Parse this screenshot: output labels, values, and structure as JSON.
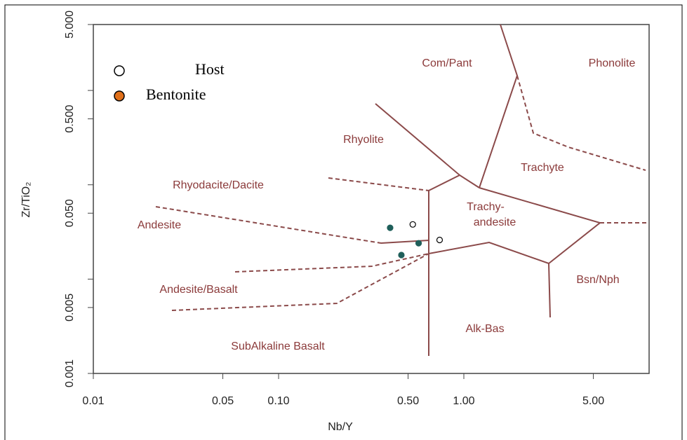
{
  "chart_data": {
    "type": "scatter",
    "x_label": "Nb/Y",
    "y_label": "Zr/TiO₂",
    "log_x": true,
    "log_y": true,
    "xlim": [
      0.01,
      10
    ],
    "ylim": [
      0.001,
      5
    ],
    "xticks": [
      0.01,
      0.05,
      {
        "value": 0.1,
        "label": "0.10"
      },
      {
        "value": 0.5,
        "label": "0.50"
      },
      {
        "value": 1,
        "label": "1.00"
      },
      {
        "value": 5,
        "label": "5.00"
      }
    ],
    "yticks": [
      {
        "value": 0.001,
        "label": "0.001"
      },
      {
        "value": 0.005,
        "label": "0.005"
      },
      {
        "value": 0.05,
        "label": "0.050"
      },
      {
        "value": 0.5,
        "label": "0.500"
      },
      {
        "value": 5,
        "label": "5.000"
      }
    ],
    "yminor_ticks": [
      0.01,
      0.1,
      1
    ],
    "annotations": [
      "Com/Pant",
      "Phonolite",
      "Rhyolite",
      "Trachyte",
      "Rhyodacite/Dacite",
      "Trachy-",
      "andesite",
      "Andesite",
      "Bsn/Nph",
      "Andesite/Basalt",
      "Alk-Bas",
      "SubAlkaline Basalt"
    ],
    "series": [
      {
        "name": "Host",
        "color": "#000000",
        "filled": false,
        "x": [
          0.53,
          0.74
        ],
        "values": [
          0.038,
          0.026
        ]
      },
      {
        "name": "Bentonite",
        "color": "#1f5f5a",
        "legend_color": "#e0701a",
        "filled": true,
        "x": [
          0.4,
          0.57,
          0.46
        ],
        "values": [
          0.035,
          0.024,
          0.018
        ]
      }
    ]
  }
}
